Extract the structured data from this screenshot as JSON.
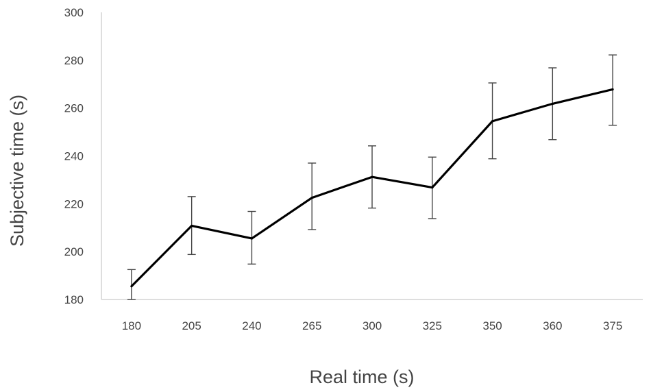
{
  "chart_data": {
    "type": "line",
    "title": "",
    "xlabel": "Real time (s)",
    "ylabel": "Subjective time (s)",
    "categories": [
      "180",
      "205",
      "240",
      "265",
      "300",
      "325",
      "350",
      "360",
      "375"
    ],
    "ylim": [
      180,
      300
    ],
    "yticks": [
      180,
      200,
      220,
      240,
      260,
      280,
      300
    ],
    "grid": false,
    "legend": "none",
    "series": [
      {
        "values": [
          185.5,
          210.8,
          205.5,
          222.5,
          231.2,
          226.8,
          254.5,
          261.8,
          267.8
        ],
        "error_upper": [
          192.5,
          223.0,
          216.8,
          237.0,
          244.2,
          239.5,
          270.5,
          276.8,
          282.2
        ],
        "error_lower": [
          180.0,
          198.8,
          194.8,
          209.2,
          218.2,
          213.8,
          238.8,
          246.8,
          252.8
        ],
        "color": "#000000"
      }
    ],
    "axis_color": "#d4d4d4",
    "errorbar_color": "#444444"
  }
}
